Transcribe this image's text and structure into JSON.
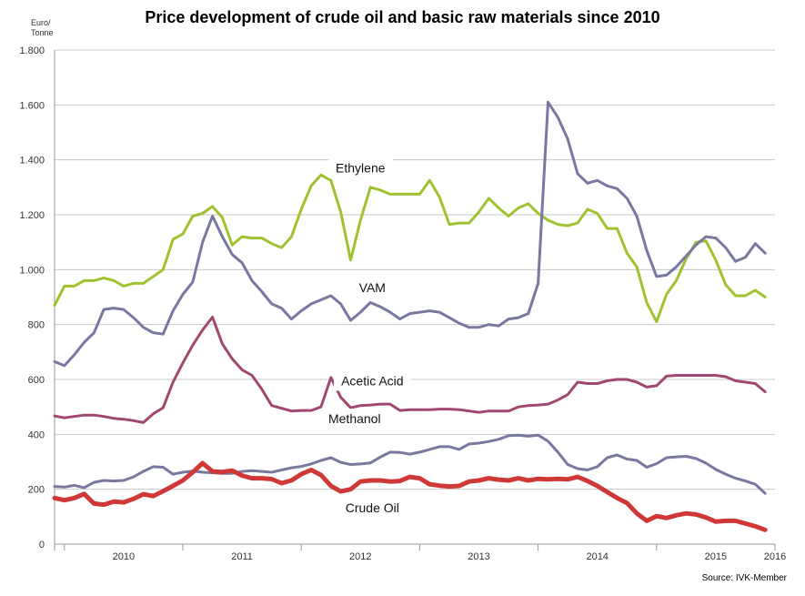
{
  "chart_data": {
    "type": "line",
    "title": "Price development of crude oil and basic raw materials since 2010",
    "ylabel_line1": "Euro/",
    "ylabel_line2": "Tonne",
    "source": "Source: IVK-Member",
    "ylim": [
      0,
      1800
    ],
    "y_ticks": [
      {
        "value": 0,
        "label": "0"
      },
      {
        "value": 200,
        "label": "200"
      },
      {
        "value": 400,
        "label": "400"
      },
      {
        "value": 600,
        "label": "600"
      },
      {
        "value": 800,
        "label": "800"
      },
      {
        "value": 1000,
        "label": "1.000"
      },
      {
        "value": 1200,
        "label": "1.200"
      },
      {
        "value": 1400,
        "label": "1.400"
      },
      {
        "value": 1600,
        "label": "1.600"
      },
      {
        "value": 1800,
        "label": "1.800"
      }
    ],
    "x_labels": [
      "2010",
      "2011",
      "2012",
      "2013",
      "2014",
      "2015",
      "2016"
    ],
    "grid": "horizontal",
    "series": [
      {
        "name": "Ethylene",
        "color": "#a0c230",
        "label_at": [
          2012.5,
          1370
        ],
        "values": [
          870,
          940,
          940,
          960,
          960,
          970,
          960,
          940,
          950,
          950,
          975,
          1000,
          1110,
          1130,
          1195,
          1205,
          1230,
          1190,
          1090,
          1120,
          1115,
          1115,
          1095,
          1080,
          1120,
          1220,
          1305,
          1345,
          1325,
          1210,
          1035,
          1180,
          1300,
          1290,
          1275,
          1275,
          1275,
          1275,
          1325,
          1265,
          1165,
          1170,
          1170,
          1210,
          1260,
          1225,
          1195,
          1225,
          1240,
          1205,
          1180,
          1165,
          1160,
          1170,
          1220,
          1205,
          1150,
          1150,
          1060,
          1010,
          880,
          810,
          910,
          960,
          1040,
          1100,
          1105,
          1035,
          945,
          905,
          905,
          925,
          900
        ]
      },
      {
        "name": "VAM",
        "color": "#7878a0",
        "label_at": [
          2012.6,
          935
        ],
        "values": [
          665,
          650,
          690,
          735,
          770,
          855,
          860,
          855,
          825,
          790,
          770,
          765,
          850,
          910,
          955,
          1100,
          1195,
          1120,
          1055,
          1025,
          960,
          920,
          875,
          860,
          820,
          850,
          875,
          890,
          905,
          875,
          815,
          845,
          880,
          865,
          845,
          820,
          840,
          845,
          850,
          845,
          825,
          805,
          790,
          790,
          800,
          795,
          820,
          825,
          840,
          950,
          1610,
          1555,
          1475,
          1350,
          1315,
          1325,
          1305,
          1295,
          1260,
          1195,
          1070,
          975,
          980,
          1010,
          1050,
          1090,
          1120,
          1115,
          1080,
          1030,
          1045,
          1095,
          1060
        ]
      },
      {
        "name": "Acetic Acid",
        "color": "#a04870",
        "label_at": [
          2012.6,
          595
        ],
        "values": [
          467,
          460,
          465,
          470,
          470,
          465,
          458,
          455,
          450,
          443,
          475,
          497,
          590,
          660,
          725,
          780,
          827,
          730,
          675,
          635,
          615,
          565,
          505,
          495,
          485,
          487,
          487,
          500,
          607,
          535,
          497,
          505,
          507,
          510,
          510,
          487,
          490,
          490,
          490,
          492,
          492,
          490,
          485,
          480,
          485,
          485,
          485,
          500,
          505,
          507,
          510,
          525,
          545,
          590,
          585,
          585,
          595,
          600,
          600,
          590,
          572,
          577,
          612,
          615,
          615,
          615,
          615,
          615,
          610,
          595,
          590,
          585,
          555
        ]
      },
      {
        "name": "Methanol",
        "color": "#7878a0",
        "label_at": [
          2012.45,
          457
        ],
        "values": [
          210,
          208,
          214,
          206,
          225,
          232,
          230,
          232,
          245,
          265,
          282,
          280,
          255,
          262,
          266,
          262,
          260,
          258,
          258,
          265,
          268,
          265,
          262,
          270,
          278,
          283,
          292,
          305,
          315,
          298,
          290,
          292,
          296,
          317,
          335,
          334,
          328,
          335,
          345,
          355,
          355,
          345,
          365,
          368,
          374,
          382,
          395,
          397,
          393,
          397,
          375,
          335,
          290,
          275,
          270,
          282,
          315,
          325,
          310,
          305,
          280,
          293,
          315,
          318,
          320,
          312,
          295,
          272,
          255,
          240,
          230,
          218,
          185
        ]
      },
      {
        "name": "Crude Oil",
        "color": "#d03838",
        "label_at": [
          2012.6,
          133
        ],
        "values": [
          168,
          160,
          168,
          183,
          148,
          144,
          155,
          152,
          165,
          182,
          175,
          193,
          212,
          232,
          262,
          295,
          265,
          263,
          268,
          250,
          240,
          240,
          237,
          222,
          232,
          255,
          270,
          252,
          212,
          192,
          200,
          228,
          232,
          232,
          228,
          230,
          245,
          240,
          218,
          213,
          210,
          212,
          228,
          232,
          240,
          235,
          232,
          240,
          232,
          238,
          236,
          238,
          236,
          245,
          230,
          212,
          190,
          168,
          150,
          112,
          85,
          102,
          95,
          105,
          112,
          108,
          97,
          82,
          85,
          85,
          75,
          65,
          52
        ]
      }
    ]
  }
}
